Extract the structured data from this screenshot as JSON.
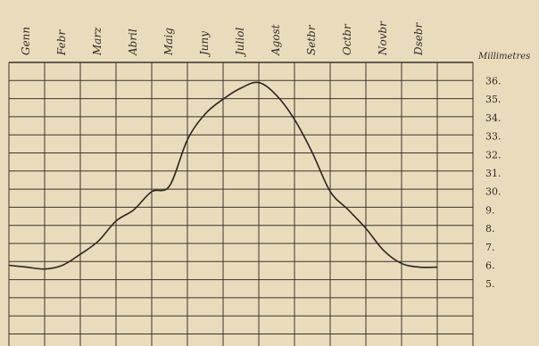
{
  "chart_data": {
    "type": "line",
    "title": "",
    "xlabel": "",
    "ylabel": "Millimetres",
    "categories": [
      "Genn",
      "Febr",
      "Marz",
      "Abril",
      "Maig",
      "Juny",
      "Juliol",
      "Agost",
      "Setbr",
      "Octbr",
      "Novbr",
      "Dsebr"
    ],
    "ytick_labels": [
      "5.",
      "6.",
      "7.",
      "8.",
      "9.",
      "30.",
      "31.",
      "32.",
      "33.",
      "34.",
      "35.",
      "36."
    ],
    "ylim": [
      5,
      36.5
    ],
    "grid": true,
    "series": [
      {
        "x": [
          0,
          0.5,
          1,
          1.5,
          2,
          2.5,
          3,
          3.5,
          4,
          4.5,
          5,
          5.5,
          6,
          6.5,
          7,
          7.5,
          8,
          8.5,
          9,
          9.5,
          10,
          10.5,
          11,
          11.5,
          12
        ],
        "values": [
          6.0,
          5.9,
          5.8,
          6.0,
          6.6,
          7.3,
          8.4,
          9.2,
          29.8,
          30.3,
          32.8,
          34.2,
          35.0,
          35.6,
          35.9,
          35.2,
          33.9,
          32.1,
          30.0,
          9.4,
          8.0,
          6.8,
          6.1,
          5.9,
          5.9
        ]
      }
    ],
    "colors": {
      "background": "#e9dcbd",
      "ink": "#2b2620"
    }
  }
}
